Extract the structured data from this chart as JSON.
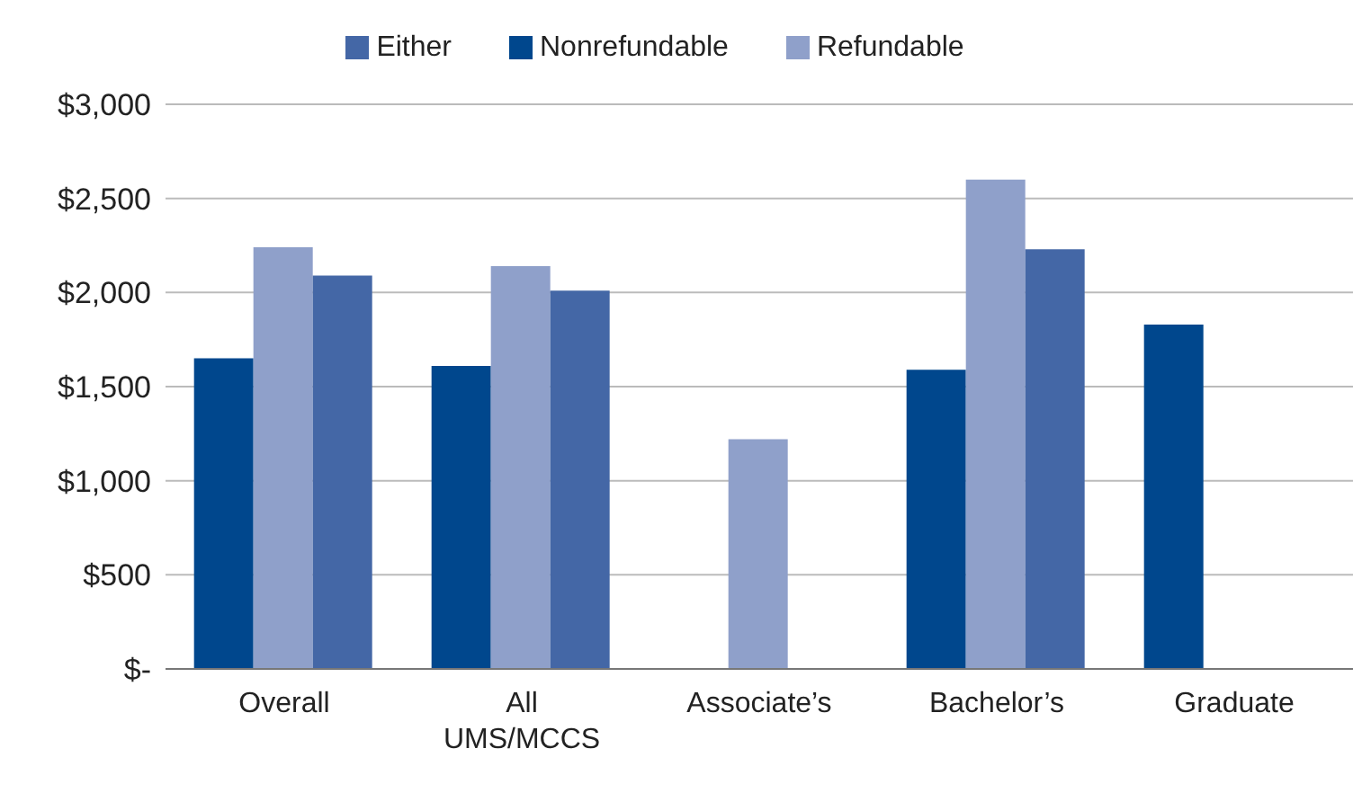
{
  "chart_data": {
    "type": "bar",
    "categories": [
      "Overall",
      "All UMS/MCCS",
      "Associate’s",
      "Bachelor’s",
      "Graduate"
    ],
    "series": [
      {
        "name": "Nonrefundable",
        "color": "#00478d",
        "values": [
          1650,
          1610,
          null,
          1590,
          1830
        ]
      },
      {
        "name": "Refundable",
        "color": "#8fa0ca",
        "values": [
          2240,
          2140,
          1220,
          2600,
          null
        ]
      },
      {
        "name": "Either",
        "color": "#4467a6",
        "values": [
          2090,
          2010,
          null,
          2230,
          null
        ]
      }
    ],
    "ylim": [
      0,
      3000
    ],
    "yticks": [
      {
        "value": 0,
        "label": "$-"
      },
      {
        "value": 500,
        "label": "$500"
      },
      {
        "value": 1000,
        "label": "$1,000"
      },
      {
        "value": 1500,
        "label": "$1,500"
      },
      {
        "value": 2000,
        "label": "$2,000"
      },
      {
        "value": 2500,
        "label": "$2,500"
      },
      {
        "value": 3000,
        "label": "$3,000"
      }
    ],
    "grid": "y",
    "legend": "top"
  }
}
